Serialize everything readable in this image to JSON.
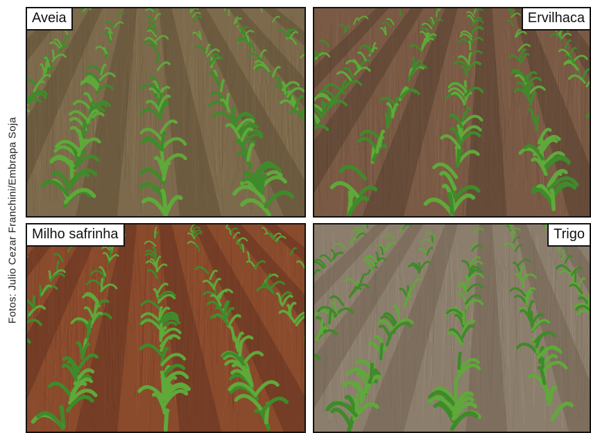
{
  "credit": "Fotos: Julio Cezar Franchini/Embrapa Soja",
  "panels": [
    {
      "label": "Aveia"
    },
    {
      "label": "Ervilhaca"
    },
    {
      "label": "Milho safrinha"
    },
    {
      "label": "Trigo"
    }
  ]
}
